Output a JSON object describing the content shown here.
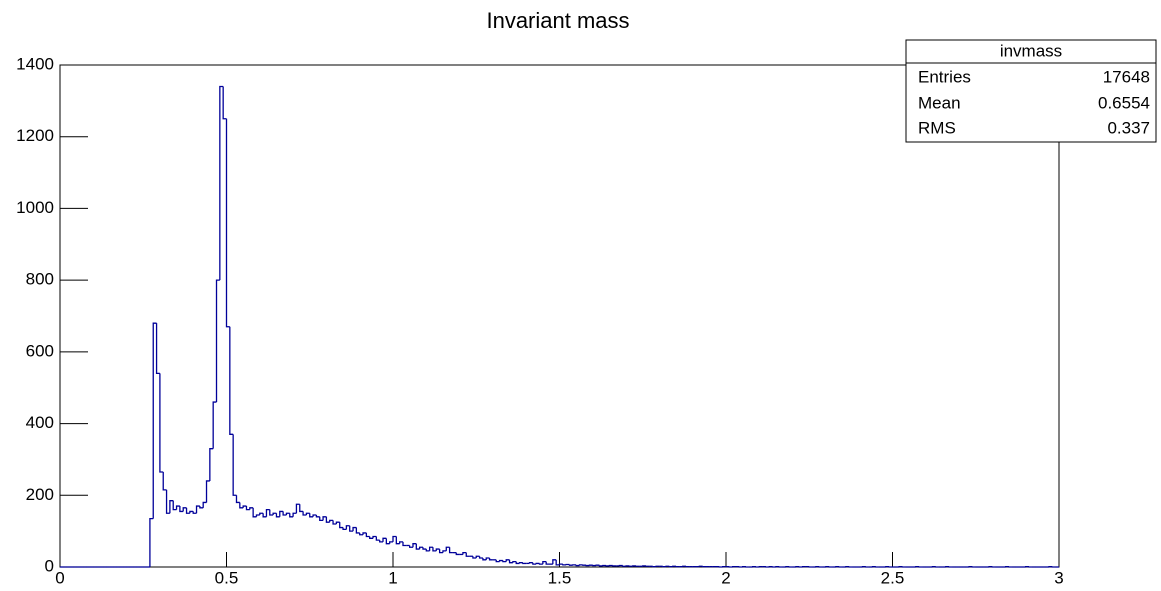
{
  "chart_data": {
    "type": "histogram",
    "title": "Invariant mass",
    "color": "#000099",
    "bins": [
      0,
      0.01,
      0.02,
      0.03,
      0.04,
      0.05,
      0.06,
      0.07,
      0.08,
      0.09,
      0.1,
      0.11,
      0.12,
      0.13,
      0.14,
      0.15,
      0.16,
      0.17,
      0.18,
      0.19,
      0.2,
      0.21,
      0.22,
      0.23,
      0.24,
      0.25,
      0.26,
      0.27,
      0.28,
      0.29,
      0.3,
      0.31,
      0.32,
      0.33,
      0.34,
      0.35,
      0.36,
      0.37,
      0.38,
      0.39,
      0.4,
      0.41,
      0.42,
      0.43,
      0.44,
      0.45,
      0.46,
      0.47,
      0.48,
      0.49,
      0.5,
      0.51,
      0.52,
      0.53,
      0.54,
      0.55,
      0.56,
      0.57,
      0.58,
      0.59,
      0.6,
      0.61,
      0.62,
      0.63,
      0.64,
      0.65,
      0.66,
      0.67,
      0.68,
      0.69,
      0.7,
      0.71,
      0.72,
      0.73,
      0.74,
      0.75,
      0.76,
      0.77,
      0.78,
      0.79,
      0.8,
      0.81,
      0.82,
      0.83,
      0.84,
      0.85,
      0.86,
      0.87,
      0.88,
      0.89,
      0.9,
      0.91,
      0.92,
      0.93,
      0.94,
      0.95,
      0.96,
      0.97,
      0.98,
      0.99,
      1,
      1.01,
      1.02,
      1.03,
      1.04,
      1.05,
      1.06,
      1.07,
      1.08,
      1.09,
      1.1,
      1.11,
      1.12,
      1.13,
      1.14,
      1.15,
      1.16,
      1.17,
      1.18,
      1.19,
      1.2,
      1.21,
      1.22,
      1.23,
      1.24,
      1.25,
      1.26,
      1.27,
      1.28,
      1.29,
      1.3,
      1.31,
      1.32,
      1.33,
      1.34,
      1.35,
      1.36,
      1.37,
      1.38,
      1.39,
      1.4,
      1.41,
      1.42,
      1.43,
      1.44,
      1.45,
      1.46,
      1.47,
      1.48,
      1.49,
      1.5,
      1.51,
      1.52,
      1.53,
      1.54,
      1.55,
      1.56,
      1.57,
      1.58,
      1.59,
      1.6,
      1.61,
      1.62,
      1.63,
      1.64,
      1.65,
      1.66,
      1.67,
      1.68,
      1.69,
      1.7,
      1.71,
      1.72,
      1.73,
      1.74,
      1.75,
      1.76,
      1.77,
      1.78,
      1.79,
      1.8,
      1.81,
      1.82,
      1.83,
      1.84,
      1.85,
      1.86,
      1.87,
      1.88,
      1.89,
      1.9,
      1.91,
      1.92,
      1.93,
      1.94,
      1.95,
      1.96,
      1.97,
      1.98,
      1.99,
      2,
      2.01,
      2.02,
      2.03,
      2.04,
      2.05,
      2.06,
      2.07,
      2.08,
      2.09,
      2.1,
      2.11,
      2.12,
      2.13,
      2.14,
      2.15,
      2.16,
      2.17,
      2.18,
      2.19,
      2.2,
      2.21,
      2.22,
      2.23,
      2.24,
      2.25,
      2.26,
      2.27,
      2.28,
      2.29,
      2.3,
      2.31,
      2.32,
      2.33,
      2.34,
      2.35,
      2.36,
      2.37,
      2.38,
      2.39,
      2.4,
      2.41,
      2.42,
      2.43,
      2.44,
      2.45,
      2.46,
      2.47,
      2.48,
      2.49,
      2.5,
      2.51,
      2.52,
      2.53,
      2.54,
      2.55,
      2.56,
      2.57,
      2.58,
      2.59,
      2.6,
      2.61,
      2.62,
      2.63,
      2.64,
      2.65,
      2.66,
      2.67,
      2.68,
      2.69,
      2.7,
      2.71,
      2.72,
      2.73,
      2.74,
      2.75,
      2.76,
      2.77,
      2.78,
      2.79,
      2.8,
      2.81,
      2.82,
      2.83,
      2.84,
      2.85,
      2.86,
      2.87,
      2.88,
      2.89,
      2.9,
      2.91,
      2.92,
      2.93,
      2.94,
      2.95,
      2.96,
      2.97,
      2.98,
      2.99,
      3
    ],
    "values": [
      0,
      0,
      0,
      0,
      0,
      0,
      0,
      0,
      0,
      0,
      0,
      0,
      0,
      0,
      0,
      0,
      0,
      0,
      0,
      0,
      0,
      0,
      0,
      0,
      0,
      0,
      0,
      135,
      680,
      540,
      265,
      215,
      150,
      185,
      160,
      170,
      155,
      165,
      150,
      155,
      150,
      170,
      165,
      180,
      240,
      330,
      460,
      800,
      1340,
      1250,
      670,
      370,
      200,
      180,
      165,
      170,
      160,
      165,
      140,
      145,
      150,
      140,
      160,
      145,
      150,
      140,
      155,
      145,
      150,
      140,
      150,
      175,
      155,
      145,
      150,
      140,
      145,
      140,
      130,
      140,
      125,
      130,
      120,
      125,
      110,
      105,
      115,
      100,
      110,
      95,
      90,
      95,
      85,
      80,
      85,
      75,
      70,
      80,
      65,
      70,
      85,
      65,
      70,
      60,
      60,
      55,
      65,
      50,
      55,
      50,
      45,
      55,
      45,
      50,
      40,
      45,
      55,
      40,
      40,
      35,
      35,
      40,
      30,
      30,
      25,
      30,
      25,
      20,
      25,
      20,
      20,
      15,
      18,
      15,
      20,
      12,
      15,
      10,
      12,
      10,
      10,
      12,
      8,
      10,
      8,
      15,
      8,
      8,
      20,
      6,
      8,
      6,
      7,
      5,
      6,
      4,
      6,
      5,
      4,
      5,
      4,
      5,
      3,
      4,
      3,
      4,
      3,
      3,
      4,
      2,
      3,
      2,
      3,
      2,
      2,
      3,
      2,
      2,
      1,
      2,
      2,
      1,
      2,
      1,
      2,
      1,
      1,
      2,
      1,
      1,
      1,
      1,
      2,
      1,
      1,
      1,
      1,
      1,
      0,
      1,
      1,
      0,
      1,
      1,
      0,
      1,
      0,
      0,
      1,
      0,
      1,
      1,
      0,
      1,
      0,
      1,
      0,
      0,
      1,
      0,
      0,
      1,
      0,
      1,
      1,
      0,
      0,
      1,
      0,
      0,
      1,
      0,
      0,
      1,
      0,
      0,
      1,
      0,
      0,
      0,
      0,
      1,
      0,
      0,
      1,
      0,
      0,
      0,
      1,
      0,
      0,
      0,
      1,
      0,
      0,
      0,
      0,
      1,
      0,
      0,
      0,
      0,
      1,
      0,
      0,
      0,
      1,
      0,
      0,
      0,
      0,
      0,
      0,
      1,
      0,
      0,
      0,
      0,
      0,
      1,
      0,
      0,
      0,
      0,
      1,
      0,
      0,
      0,
      0,
      0,
      1,
      0,
      0,
      0,
      0,
      0,
      0,
      1,
      0,
      0
    ],
    "xlim": [
      0,
      3
    ],
    "xticks": [
      0,
      0.5,
      1,
      1.5,
      2,
      2.5,
      3
    ],
    "ylim": [
      0,
      1400
    ],
    "yticks": [
      0,
      200,
      400,
      600,
      800,
      1000,
      1200,
      1400
    ],
    "stats_box": {
      "title": "invmass",
      "rows": [
        [
          "Entries",
          "17648"
        ],
        [
          "Mean",
          "0.6554"
        ],
        [
          "RMS",
          "0.337"
        ]
      ]
    }
  }
}
